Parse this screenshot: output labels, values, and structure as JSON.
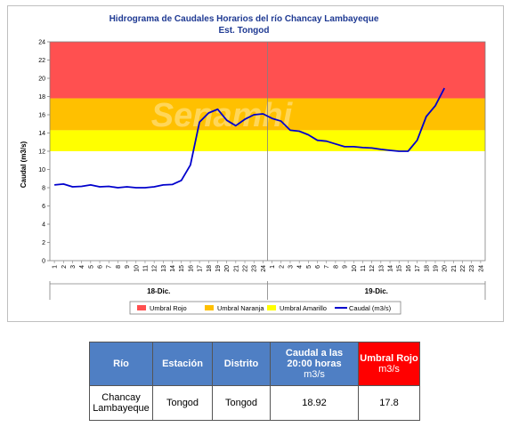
{
  "chart_data": {
    "type": "line",
    "title": "Hidrograma de Caudales Horarios del río Chancay Lambayeque",
    "subtitle": "Est. Tongod",
    "ylabel": "Caudal  (m3/s)",
    "ylim": [
      0,
      24
    ],
    "yticks": [
      0,
      2,
      4,
      6,
      8,
      10,
      12,
      14,
      16,
      18,
      20,
      22,
      24
    ],
    "xticks": [
      "1",
      "2",
      "3",
      "4",
      "5",
      "6",
      "7",
      "8",
      "9",
      "10",
      "11",
      "12",
      "13",
      "14",
      "15",
      "16",
      "17",
      "18",
      "19",
      "20",
      "21",
      "22",
      "23",
      "24",
      "1",
      "2",
      "3",
      "4",
      "5",
      "6",
      "7",
      "8",
      "9",
      "10",
      "11",
      "12",
      "13",
      "14",
      "15",
      "16",
      "17",
      "18",
      "19",
      "20",
      "21",
      "22",
      "23",
      "24"
    ],
    "day_groups": [
      {
        "label": "18-Dic.",
        "start": 1,
        "end": 24
      },
      {
        "label": "19-Dic.",
        "start": 25,
        "end": 48
      }
    ],
    "bands": [
      {
        "name": "Umbral Rojo",
        "from": 17.8,
        "to": 24,
        "color": "#ff5050"
      },
      {
        "name": "Umbral Naranja",
        "from": 14.3,
        "to": 17.8,
        "color": "#ffc000"
      },
      {
        "name": "Umbral Amarillo",
        "from": 12.0,
        "to": 14.3,
        "color": "#ffff00"
      }
    ],
    "series": [
      {
        "name": "Caudal (m3/s)",
        "color": "#0000cc",
        "x": [
          1,
          2,
          3,
          4,
          5,
          6,
          7,
          8,
          9,
          10,
          11,
          12,
          13,
          14,
          15,
          16,
          17,
          18,
          19,
          20,
          21,
          22,
          23,
          24,
          25,
          26,
          27,
          28,
          29,
          30,
          31,
          32,
          33,
          34,
          35,
          36,
          37,
          38,
          39,
          40,
          41,
          42,
          43,
          44
        ],
        "values": [
          8.3,
          8.4,
          8.1,
          8.15,
          8.3,
          8.1,
          8.15,
          8.0,
          8.1,
          8.0,
          8.0,
          8.1,
          8.3,
          8.35,
          8.8,
          10.5,
          15.2,
          16.2,
          16.6,
          15.4,
          14.8,
          15.5,
          16.0,
          16.1,
          15.6,
          15.3,
          14.3,
          14.2,
          13.8,
          13.2,
          13.1,
          12.8,
          12.5,
          12.5,
          12.4,
          12.35,
          12.2,
          12.1,
          12.0,
          12.0,
          13.2,
          15.8,
          17.0,
          18.92
        ]
      }
    ],
    "legend": [
      "Umbral Rojo",
      "Umbral Naranja",
      "Umbral Amarillo",
      "Caudal (m3/s)"
    ],
    "legend_position": "bottom"
  },
  "watermark": "Senamhi",
  "table": {
    "headers": [
      {
        "label": "Río"
      },
      {
        "label": "Estación"
      },
      {
        "label": "Distrito"
      },
      {
        "label": "Caudal a las 20:00 horas",
        "sub": "m3/s"
      },
      {
        "label": "Umbral Rojo",
        "sub": "m3/s"
      }
    ],
    "row": [
      "Chancay Lambayeque",
      "Tongod",
      "Tongod",
      "18.92",
      "17.8"
    ]
  }
}
